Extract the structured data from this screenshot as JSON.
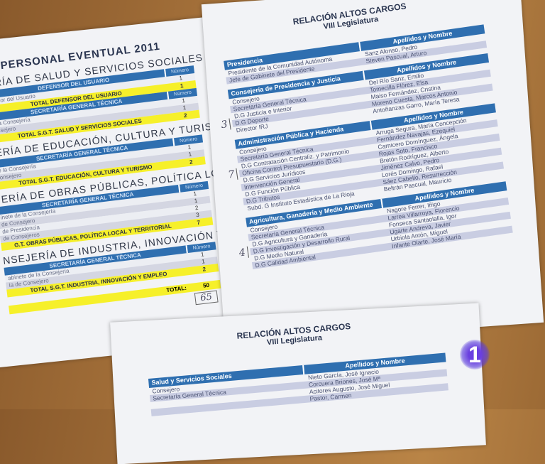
{
  "left_doc": {
    "title": "PERSONAL EVENTUAL 2011",
    "number_label": "Número",
    "sections": [
      {
        "heading": "JERÍA DE SALUD Y SERVICIOS SOCIALES",
        "subs": [
          {
            "header": "DEFENSOR DEL USUARIO",
            "rows": [
              [
                "efensor del Usuario",
                "1"
              ]
            ],
            "total_label": "TOTAL DEFENSOR DEL USUARIO",
            "total": "1"
          },
          {
            "header": "SECRETARÍA GENERAL TÉCNICA",
            "rows": [
              [
                "de la Consejería",
                "1"
              ],
              [
                "Consejero",
                "1"
              ]
            ],
            "total_label": "TOTAL S.G.T. SALUD Y SERVICIOS SOCIALES",
            "total": "2"
          }
        ]
      },
      {
        "heading": "JERÍA DE EDUCACIÓN, CULTURA Y TURISMO",
        "subs": [
          {
            "header": "SECRETARÍA GENERAL TÉCNICA",
            "rows": [
              [
                "de la Consejería",
                "1"
              ],
              [
                "Consejero",
                "1"
              ]
            ],
            "total_label": "TOTAL S.G.T. EDUCACIÓN, CULTURA Y TURISMO",
            "total": "2"
          }
        ]
      },
      {
        "heading": "JERÍA DE OBRAS PÚBLICAS, POLÍTICA LOCAL Y TERRITORIAL",
        "subs": [
          {
            "header": "SECRETARÍA GENERAL TÉCNICA",
            "rows": [
              [
                "inete de la Consejería",
                "1"
              ],
              [
                "de Consejero",
                "1"
              ],
              [
                "de Presidencia",
                "2"
              ],
              [
                "de Consejeros",
                "3"
              ]
            ],
            "total_label": "G.T. OBRAS PÚBLICAS, POLÍTICA LOCAL Y TERRITORIAL",
            "total": "7"
          }
        ]
      },
      {
        "heading": "NSEJERÍA DE INDUSTRIA, INNOVACIÓN Y EMPLEO",
        "subs": [
          {
            "header": "SECRETARÍA GENERAL TÉCNICA",
            "rows": [
              [
                "abinete de la Consejería",
                "1"
              ],
              [
                "ía de Consejero",
                "1"
              ]
            ],
            "total_label": "TOTAL S.G.T. INDUSTRIA, INNOVACIÓN Y EMPLEO",
            "total": "2"
          }
        ]
      }
    ],
    "grand_total_label": "TOTAL:",
    "grand_total": "50",
    "handwritten_total": "65"
  },
  "right_doc": {
    "title": "RELACIÓN ALTOS CARGOS",
    "subtitle": "VIII Legislatura",
    "tables": [
      {
        "header": "Presidencia",
        "col2": "Apellidos y Nombre",
        "rows": [
          [
            "Presidente de la Comunidad Autónoma",
            "Sanz Alonso, Pedro"
          ],
          [
            "Jefe de Gabinete del Presidente",
            "Steven Pascual, Arturo"
          ]
        ]
      },
      {
        "header": "Consejería de Presidencia y Justicia",
        "col2": "Apellidos y Nombre",
        "margin_note": "3",
        "rows": [
          [
            "Consejero",
            "Del Río Sanz, Emilio"
          ],
          [
            "Secretaría General Técnica",
            "Tomecilla Flórez, Elsa"
          ],
          [
            "D.G Justicia e Interior",
            "Maiso Fernández, Cristina"
          ],
          [
            "D.G Deporte",
            "Moreno Cuesta, Marcos Antonio"
          ],
          [
            "Director IRJ",
            "Antoñanzas Garro, María Teresa"
          ]
        ]
      },
      {
        "header": "Administración Pública y Hacienda",
        "col2": "Apellidos y Nombre",
        "margin_note": "7",
        "rows": [
          [
            "Consejero",
            "Arruga Segura, María Concepción"
          ],
          [
            "Secretaría General Técnica",
            "Fernández Navajas, Ezequiel"
          ],
          [
            "D.G Contratación Centraliz. y Patrimonio",
            "Carnicero Domínguez, Ángela"
          ],
          [
            "Oficina Control Presupuestario (D.G.)",
            "Rojas Soto, Francisco"
          ],
          [
            "D.G Servicios Jurídicos",
            "Bretón Rodríguez, Alberto"
          ],
          [
            "Intervención General",
            "Jiménez Calvo, Pedro"
          ],
          [
            "D.G Función Pública",
            "Lorés Domingo, Rafael"
          ],
          [
            "D.G Tributos",
            "Sáez Cabello, Resurrección"
          ],
          [
            "Subd. G Instituto Estadística de La Rioja",
            "Beltrán Pascual, Mauricio"
          ]
        ]
      },
      {
        "header": "Agricultura, Ganadería y Medio Ambiente",
        "col2": "Apellidos y Nombre",
        "margin_note": "4",
        "rows": [
          [
            "Consejero",
            "Nagore Ferrer, Iñigo"
          ],
          [
            "Secretaría General Técnica",
            "Larrea Villarroya, Florencio"
          ],
          [
            "D.G Agricultura y Ganadería",
            "Fonseca Santaolalla, Igor"
          ],
          [
            "D.G Investigación y Desarrollo Rural",
            "Ugarte Andreva, Javier"
          ],
          [
            "D.G Medio Natural",
            "Urbiola Antón, Miguel"
          ],
          [
            "D.G Calidad Ambiental",
            "Infante Olarte, José María"
          ]
        ]
      }
    ]
  },
  "bottom_doc": {
    "title": "RELACIÓN ALTOS CARGOS",
    "subtitle": "VIII Legislatura",
    "tables": [
      {
        "header": "Salud y Servicios Sociales",
        "col2": "Apellidos y Nombre",
        "rows": [
          [
            "Consejero",
            "Nieto García, José Ignacio"
          ],
          [
            "Secretaría General Técnica",
            "Corcuera Briones, José Mª"
          ],
          [
            "",
            "Acitores Augusto, José Miguel"
          ],
          [
            "",
            "Pastor, Carmen"
          ]
        ]
      }
    ]
  },
  "channel_logo": "1",
  "colors": {
    "table_header": "#2f6fb0",
    "highlight": "#f6f02a",
    "row_alt": "#c9cde2"
  }
}
